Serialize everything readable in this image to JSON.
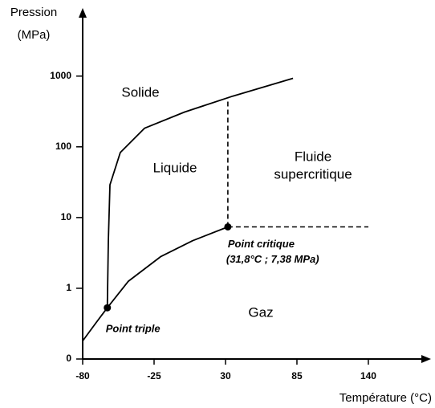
{
  "chart_data": {
    "type": "line",
    "ylabel_lines": [
      "Pression",
      "(MPa)"
    ],
    "xlabel": "Température (°C)",
    "log_y": true,
    "xlim": [
      -80,
      187
    ],
    "ylim": [
      0.1,
      8700
    ],
    "xticks": [
      -80,
      -25,
      30,
      85,
      140
    ],
    "yticks": [
      {
        "value": 0.1,
        "label": "0"
      },
      1,
      10,
      100,
      1000
    ],
    "color": "#000000",
    "series": [
      {
        "style": "solid",
        "x": [
          -80,
          -70,
          -61
        ],
        "values": [
          0.18,
          0.32,
          0.53
        ]
      },
      {
        "style": "solid",
        "x": [
          -61,
          -44.8,
          -20,
          4.7,
          31.8
        ],
        "values": [
          0.53,
          1.26,
          2.8,
          4.7,
          7.38
        ]
      },
      {
        "style": "solid",
        "x": [
          -61,
          -60.2,
          -59,
          -51,
          -32.4,
          -1.5,
          35.6,
          82
        ],
        "values": [
          0.53,
          4.7,
          29,
          83,
          183,
          310,
          520,
          930
        ]
      },
      {
        "style": "dashed",
        "x": [
          31.8,
          31.8
        ],
        "values": [
          7.38,
          500
        ]
      },
      {
        "style": "dashed",
        "x": [
          31.8,
          140
        ],
        "values": [
          7.38,
          7.38
        ]
      }
    ],
    "points": [
      {
        "label": "Point triple",
        "x": -61,
        "y": 0.53
      },
      {
        "label": "Point critique",
        "sublabel": "(31,8°C ; 7,38 MPa)",
        "x": 31.8,
        "y": 7.38
      }
    ],
    "regions": [
      "Solide",
      "Liquide",
      "Fluide",
      "supercritique",
      "Gaz"
    ]
  }
}
